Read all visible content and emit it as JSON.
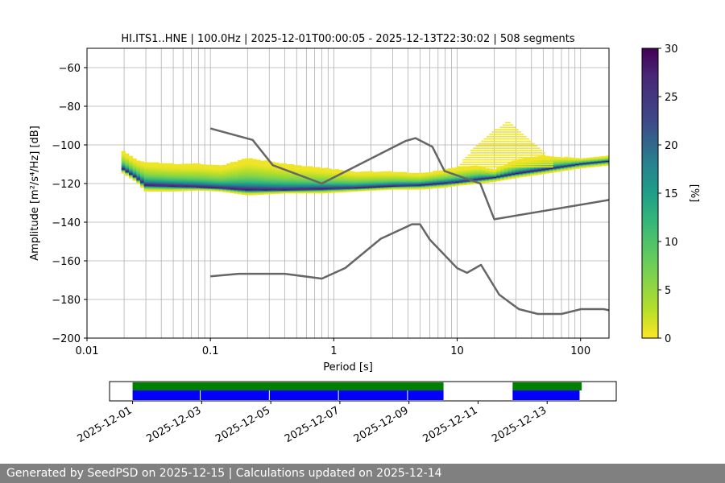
{
  "chart_data": {
    "type": "heatmap",
    "title": "HI.ITS1..HNE | 100.0Hz | 2025-12-01T00:00:05 - 2025-12-13T22:30:02 | 508 segments",
    "xlabel": "Period [s]",
    "ylabel": "Amplitude [m²/s⁴/Hz] [dB]",
    "x_scale": "log",
    "xlim": [
      0.01,
      170
    ],
    "ylim": [
      -200,
      -50
    ],
    "x_ticks": [
      {
        "value": 0.01,
        "label": "0.01"
      },
      {
        "value": 0.1,
        "label": "0.1"
      },
      {
        "value": 1,
        "label": "1"
      },
      {
        "value": 10,
        "label": "10"
      },
      {
        "value": 100,
        "label": "100"
      }
    ],
    "y_ticks": [
      -60,
      -80,
      -100,
      -120,
      -140,
      -160,
      -180,
      -200
    ],
    "y_tick_labels": [
      "−60",
      "−80",
      "−100",
      "−120",
      "−140",
      "−160",
      "−180",
      "−200"
    ],
    "grid": true,
    "colorbar": {
      "label": "[%]",
      "range": [
        0,
        30
      ],
      "ticks": [
        0,
        5,
        10,
        15,
        20,
        25,
        30
      ],
      "colormap": "viridis_r"
    },
    "noise_models": [
      {
        "name": "",
        "color": "#666666",
        "points": [
          [
            0.1,
            -91.5
          ],
          [
            0.22,
            -97.4
          ],
          [
            0.32,
            -110.5
          ],
          [
            0.8,
            -120
          ],
          [
            3.8,
            -98
          ],
          [
            4.6,
            -96.5
          ],
          [
            6.3,
            -101
          ],
          [
            7.9,
            -113.5
          ],
          [
            15.4,
            -120
          ],
          [
            20,
            -138.5
          ],
          [
            170,
            -128.5
          ]
        ]
      },
      {
        "name": "",
        "color": "#666666",
        "points": [
          [
            0.1,
            -168
          ],
          [
            0.17,
            -166.7
          ],
          [
            0.4,
            -166.7
          ],
          [
            0.8,
            -169.2
          ],
          [
            1.24,
            -163.7
          ],
          [
            2.4,
            -148.6
          ],
          [
            4.3,
            -141.1
          ],
          [
            5.0,
            -141.1
          ],
          [
            6.0,
            -149
          ],
          [
            10,
            -163.8
          ],
          [
            12,
            -166.2
          ],
          [
            15.6,
            -162.1
          ],
          [
            21.9,
            -177.5
          ],
          [
            31.6,
            -185
          ],
          [
            45,
            -187.5
          ],
          [
            70,
            -187.5
          ],
          [
            101,
            -185
          ],
          [
            154,
            -185
          ],
          [
            170,
            -185.6
          ]
        ]
      }
    ],
    "psd_band": {
      "period": [
        0.019,
        0.025,
        0.03,
        0.05,
        0.08,
        0.12,
        0.2,
        0.4,
        0.8,
        1.5,
        3,
        5,
        8,
        10,
        15,
        20,
        30,
        50,
        100,
        170
      ],
      "mode": [
        -112,
        -117,
        -121,
        -121.5,
        -122,
        -122.5,
        -123.5,
        -123.5,
        -123,
        -122.5,
        -121.5,
        -121,
        -120,
        -119.5,
        -118,
        -117,
        -115,
        -113,
        -110,
        -108.5
      ],
      "upper": [
        -103,
        -108,
        -109,
        -110,
        -110,
        -111,
        -107,
        -110,
        -112,
        -114,
        -114,
        -115,
        -113,
        -112,
        -111,
        -113,
        -108,
        -106,
        -107,
        -106
      ],
      "lower": [
        -114,
        -119,
        -124,
        -124,
        -123.5,
        -124,
        -126,
        -125,
        -125,
        -124,
        -123,
        -123,
        -122,
        -121,
        -120,
        -119,
        -117,
        -115,
        -112,
        -110.5
      ]
    },
    "microseism_scatter": {
      "period_range": [
        10,
        60
      ],
      "peak_period": 25,
      "peak_db": -87,
      "base_db": -111
    }
  },
  "availability": {
    "date_ticks": [
      "2025-12-01",
      "2025-12-03",
      "2025-12-05",
      "2025-12-07",
      "2025-12-09",
      "2025-12-11",
      "2025-12-13"
    ],
    "data_color": "#0000ff",
    "gap_color": "#008000",
    "green_spans": [
      [
        "2025-12-01T00:00:05",
        "2025-12-10T00:00:00"
      ],
      [
        "2025-12-12T00:00:00",
        "2025-12-14T00:00:00"
      ]
    ],
    "blue_spans": [
      [
        "2025-12-01T00:00:05",
        "2025-12-10T00:00:00"
      ],
      [
        "2025-12-12T00:00:00",
        "2025-12-13T22:30:02"
      ]
    ],
    "gap_marks": [
      "2025-12-02T23:00:00",
      "2025-12-04T23:00:00",
      "2025-12-06T23:00:00",
      "2025-12-08T23:00:00"
    ]
  },
  "footer": {
    "text": "Generated by SeedPSD on 2025-12-15 | Calculations updated on 2025-12-14"
  }
}
